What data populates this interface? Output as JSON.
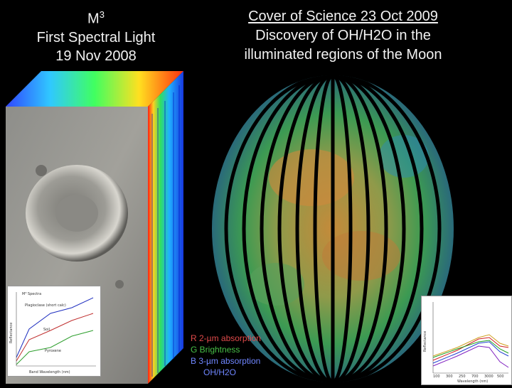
{
  "left_title": {
    "line1_main": "M",
    "line1_sup": "3",
    "line2": "First Spectral Light",
    "line3": "19 Nov 2008"
  },
  "right_title": {
    "line1": "Cover of Science 23 Oct 2009",
    "line2": "Discovery of OH/H2O in the",
    "line3": "illuminated regions of the Moon"
  },
  "legend": {
    "r": "R 2-µm absorption",
    "g": "G Brightness",
    "b": "B 3-µm absorption",
    "b2": "OH/H2O"
  },
  "inset_left": {
    "title": "M³ Spectra",
    "label_plag": "Plagioclase (short calc)",
    "label_soil": "Soil",
    "label_pyx": "Pyroxene",
    "xlabel": "Band Wavelength (nm)",
    "ylabel": "Reflectance"
  },
  "inset_right": {
    "xlabel": "Wavelength (nm)",
    "ylabel": "Reflectance",
    "xticks": [
      "100",
      "300",
      "250",
      "700",
      "3000",
      "500"
    ]
  },
  "colors": {
    "background": "#000000",
    "title_text": "#f2f2f2",
    "legend_r": "#e04a4a",
    "legend_g": "#47c047",
    "legend_b": "#6f86ff"
  }
}
